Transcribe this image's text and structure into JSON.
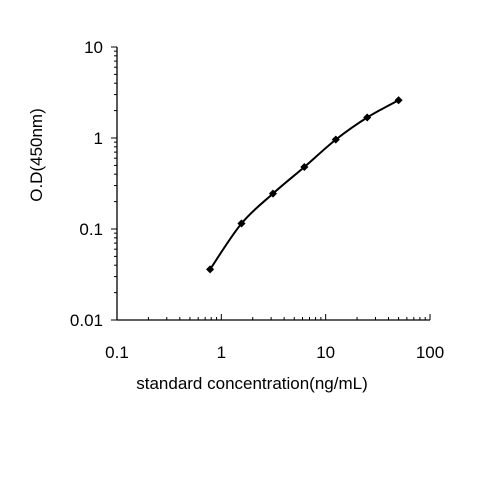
{
  "chart_data": {
    "type": "line",
    "title": "",
    "xlabel": "standard concentration(ng/mL)",
    "ylabel": "O.D(450nm)",
    "x_scale": "log",
    "y_scale": "log",
    "xlim": [
      0.1,
      100
    ],
    "ylim": [
      0.01,
      10
    ],
    "x_ticks": [
      "0.1",
      "1",
      "10",
      "100"
    ],
    "y_ticks": [
      "0.01",
      "0.1",
      "1",
      "10"
    ],
    "grid": false,
    "legend": "none",
    "marker": "diamond",
    "line_color": "#000000",
    "series": [
      {
        "x": [
          0.78,
          1.56,
          3.125,
          6.25,
          12.5,
          25,
          50
        ],
        "y": [
          0.036,
          0.115,
          0.245,
          0.48,
          0.96,
          1.68,
          2.6
        ]
      }
    ]
  }
}
